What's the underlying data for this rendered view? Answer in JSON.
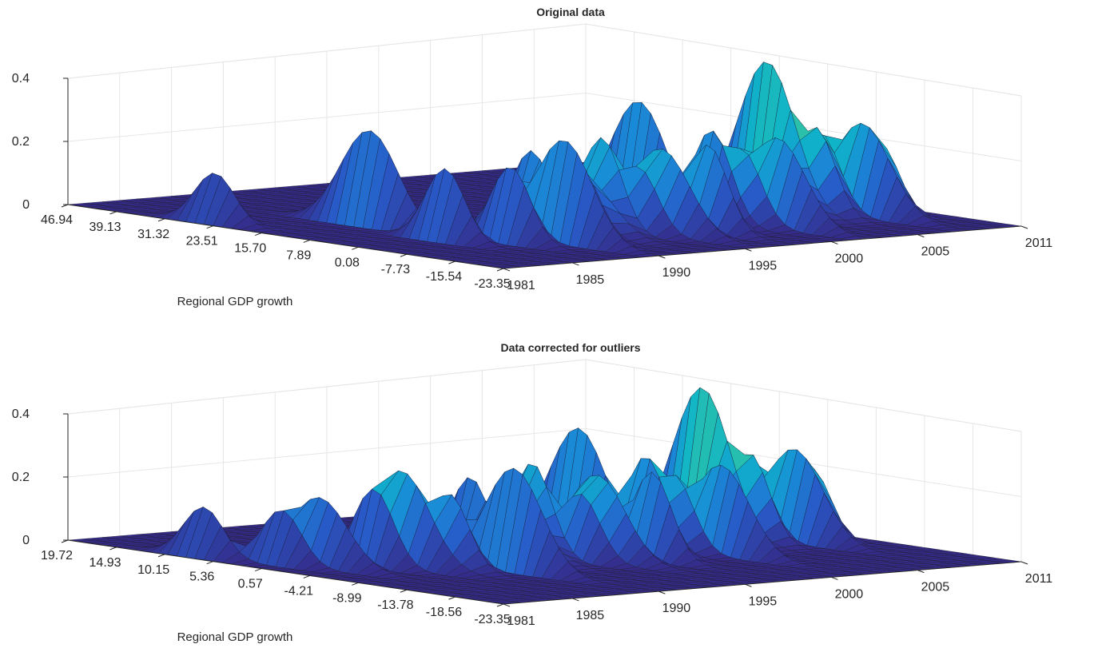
{
  "chart_data": [
    {
      "type": "surface",
      "title": "Original data",
      "xlabel": "Regional GDP growth",
      "ylabel": "",
      "zlabel": "",
      "x_tick_labels": [
        "46.94",
        "39.13",
        "31.32",
        "23.51",
        "15.70",
        "7.89",
        "0.08",
        "-7.73",
        "-15.54",
        "-23.35"
      ],
      "y_tick_labels": [
        "1981",
        "1985",
        "1990",
        "1995",
        "2000",
        "2005",
        "2011"
      ],
      "z_tick_labels": [
        "0",
        "0.2",
        "0.4"
      ],
      "years": [
        1981,
        2011
      ],
      "zlim": [
        0,
        0.4
      ],
      "grid": true,
      "colormap": "parula (dark blue to green)",
      "peaks": [
        {
          "year": 1982,
          "growth": 26.0,
          "density": 0.1
        },
        {
          "year": 1986,
          "growth": 0.0,
          "density": 0.15
        },
        {
          "year": 1987,
          "growth": 15.0,
          "density": 0.2
        },
        {
          "year": 1988,
          "growth": -5.0,
          "density": 0.16
        },
        {
          "year": 1989,
          "growth": -2.0,
          "density": 0.13
        },
        {
          "year": 1990,
          "growth": -8.0,
          "density": 0.22
        },
        {
          "year": 1991,
          "growth": 0.0,
          "density": 0.18
        },
        {
          "year": 1992,
          "growth": -5.0,
          "density": 0.15
        },
        {
          "year": 1993,
          "growth": -3.0,
          "density": 0.12
        },
        {
          "year": 1994,
          "growth": -3.0,
          "density": 0.21
        },
        {
          "year": 1995,
          "growth": -6.0,
          "density": 0.15
        },
        {
          "year": 1996,
          "growth": -7.0,
          "density": 0.19
        },
        {
          "year": 1997,
          "growth": -6.0,
          "density": 0.13
        },
        {
          "year": 1998,
          "growth": -9.0,
          "density": 0.2
        },
        {
          "year": 1999,
          "growth": 5.0,
          "density": 0.27
        },
        {
          "year": 2000,
          "growth": -4.0,
          "density": 0.22
        },
        {
          "year": 2001,
          "growth": -6.0,
          "density": 0.18
        },
        {
          "year": 2002,
          "growth": -9.0,
          "density": 0.21
        },
        {
          "year": 2003,
          "growth": -7.0,
          "density": 0.16
        },
        {
          "year": 2004,
          "growth": -5.0,
          "density": 0.13
        },
        {
          "year": 2005,
          "growth": 1.0,
          "density": 0.37
        },
        {
          "year": 2006,
          "growth": -4.0,
          "density": 0.22
        },
        {
          "year": 2007,
          "growth": -2.0,
          "density": 0.2
        },
        {
          "year": 2008,
          "growth": -6.0,
          "density": 0.23
        },
        {
          "year": 2009,
          "growth": -6.0,
          "density": 0.18
        }
      ]
    },
    {
      "type": "surface",
      "title": "Data corrected for outliers",
      "xlabel": "Regional GDP growth",
      "ylabel": "",
      "zlabel": "",
      "x_tick_labels": [
        "19.72",
        "14.93",
        "10.15",
        "5.36",
        "0.57",
        "-4.21",
        "-8.99",
        "-13.78",
        "-18.56",
        "-23.35"
      ],
      "y_tick_labels": [
        "1981",
        "1985",
        "1990",
        "1995",
        "2000",
        "2005",
        "2011"
      ],
      "z_tick_labels": [
        "0",
        "0.2",
        "0.4"
      ],
      "years": [
        1981,
        2011
      ],
      "zlim": [
        0,
        0.4
      ],
      "grid": true,
      "colormap": "parula (dark blue to green)",
      "peaks": [
        {
          "year": 1982,
          "growth": 8.0,
          "density": 0.1
        },
        {
          "year": 1983,
          "growth": 2.0,
          "density": 0.11
        },
        {
          "year": 1984,
          "growth": 0.0,
          "density": 0.14
        },
        {
          "year": 1986,
          "growth": -2.0,
          "density": 0.16
        },
        {
          "year": 1987,
          "growth": -3.0,
          "density": 0.2
        },
        {
          "year": 1988,
          "growth": -6.0,
          "density": 0.16
        },
        {
          "year": 1989,
          "growth": -4.0,
          "density": 0.13
        },
        {
          "year": 1990,
          "growth": -9.0,
          "density": 0.22
        },
        {
          "year": 1991,
          "growth": -3.0,
          "density": 0.18
        },
        {
          "year": 1992,
          "growth": -6.0,
          "density": 0.15
        },
        {
          "year": 1993,
          "growth": -4.0,
          "density": 0.12
        },
        {
          "year": 1994,
          "growth": -4.0,
          "density": 0.21
        },
        {
          "year": 1995,
          "growth": -7.0,
          "density": 0.15
        },
        {
          "year": 1996,
          "growth": -7.0,
          "density": 0.19
        },
        {
          "year": 1997,
          "growth": -6.0,
          "density": 0.13
        },
        {
          "year": 1998,
          "growth": -9.0,
          "density": 0.2
        },
        {
          "year": 1999,
          "growth": 0.0,
          "density": 0.27
        },
        {
          "year": 2000,
          "growth": -5.0,
          "density": 0.22
        },
        {
          "year": 2001,
          "growth": -6.0,
          "density": 0.18
        },
        {
          "year": 2002,
          "growth": -9.0,
          "density": 0.21
        },
        {
          "year": 2003,
          "growth": -7.0,
          "density": 0.16
        },
        {
          "year": 2004,
          "growth": -5.0,
          "density": 0.13
        },
        {
          "year": 2005,
          "growth": -2.0,
          "density": 0.37
        },
        {
          "year": 2006,
          "growth": -5.0,
          "density": 0.22
        },
        {
          "year": 2007,
          "growth": -3.0,
          "density": 0.2
        },
        {
          "year": 2008,
          "growth": -6.0,
          "density": 0.23
        },
        {
          "year": 2009,
          "growth": -6.0,
          "density": 0.18
        }
      ]
    }
  ]
}
